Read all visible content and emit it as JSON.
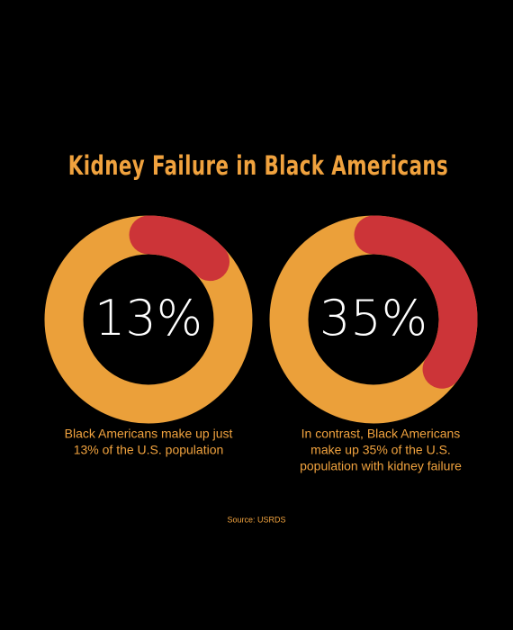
{
  "title": "Kidney Failure in Black Americans",
  "source": "Source: USRDS",
  "chart_data": [
    {
      "type": "donut",
      "values": [
        13
      ],
      "value_labels": [
        "13%"
      ],
      "color": "#cc3438",
      "ring_color": "#eba03a",
      "caption": [
        "Black Americans make up just",
        "13% of the U.S. population"
      ]
    },
    {
      "type": "donut",
      "values": [
        35
      ],
      "value_labels": [
        "35%"
      ],
      "color": "#cc3438",
      "ring_color": "#eba03a",
      "caption": [
        "In contrast, Black Americans",
        "make up 35% of the U.S.",
        "population with kidney failure"
      ]
    }
  ]
}
